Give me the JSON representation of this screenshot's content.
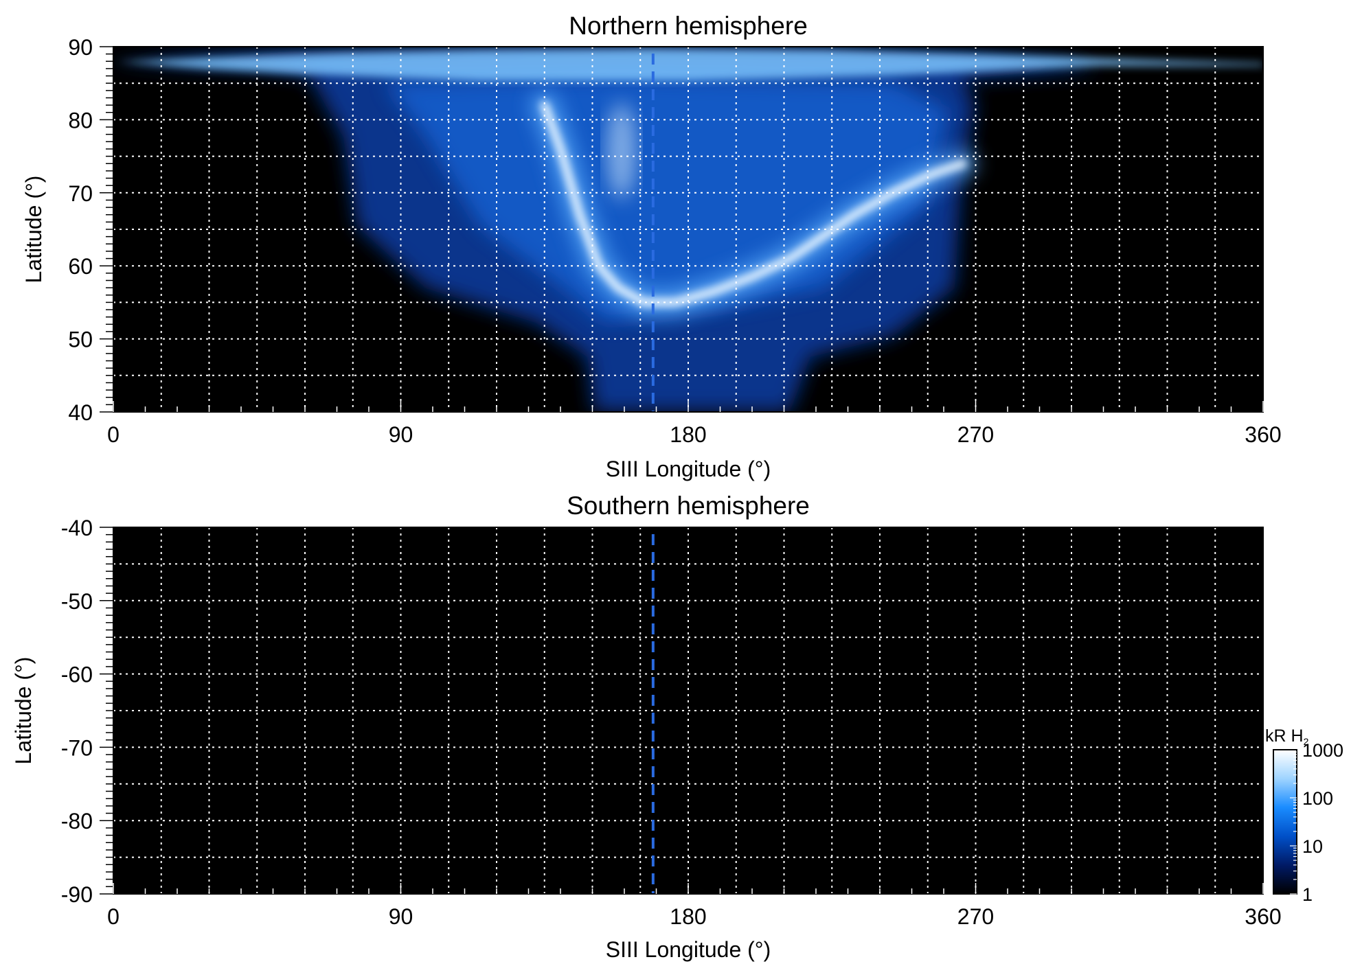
{
  "chart_data": [
    {
      "type": "heatmap",
      "title": "Northern hemisphere",
      "xlabel": "SIII Longitude (°)",
      "ylabel": "Latitude (°)",
      "xlim": [
        0,
        360
      ],
      "ylim": [
        40,
        90
      ],
      "x_ticks": [
        "0",
        "90",
        "180",
        "270",
        "360"
      ],
      "y_ticks": [
        "40",
        "50",
        "60",
        "70",
        "80",
        "90"
      ],
      "grid": true,
      "dashed_marker_longitude": 169,
      "main_oval": [
        {
          "lon": 135,
          "lat": 82
        },
        {
          "lon": 140,
          "lat": 76
        },
        {
          "lon": 146,
          "lat": 67
        },
        {
          "lon": 152,
          "lat": 60
        },
        {
          "lon": 158,
          "lat": 57
        },
        {
          "lon": 166,
          "lat": 55
        },
        {
          "lon": 176,
          "lat": 55
        },
        {
          "lon": 188,
          "lat": 56.5
        },
        {
          "lon": 200,
          "lat": 58.5
        },
        {
          "lon": 212,
          "lat": 61
        },
        {
          "lon": 222,
          "lat": 64
        },
        {
          "lon": 232,
          "lat": 67
        },
        {
          "lon": 244,
          "lat": 70
        },
        {
          "lon": 256,
          "lat": 72.5
        },
        {
          "lon": 266,
          "lat": 74
        }
      ],
      "coverage_region": "lon 40–300 at lat 85–90, narrowing to lon 150–210 at lat 40"
    },
    {
      "type": "heatmap",
      "title": "Southern hemisphere",
      "xlabel": "SIII Longitude (°)",
      "ylabel": "Latitude (°)",
      "xlim": [
        0,
        360
      ],
      "ylim": [
        -90,
        -40
      ],
      "x_ticks": [
        "0",
        "90",
        "180",
        "270",
        "360"
      ],
      "y_ticks": [
        "-40",
        "-50",
        "-60",
        "-70",
        "-80",
        "-90"
      ],
      "grid": true,
      "dashed_marker_longitude": 169
    }
  ],
  "colorbar": {
    "label": "kR H",
    "label_sub": "2",
    "scale": "log",
    "range": [
      1,
      1000
    ],
    "ticks": [
      "1000",
      "100",
      "10",
      "1"
    ],
    "colors": [
      "#000000",
      "#001a66",
      "#0050c8",
      "#1a8cff",
      "#9fd4ff",
      "#ffffff"
    ]
  },
  "colors": {
    "background": "#000000",
    "grid": "#ffffff",
    "marker": "#2a6be0",
    "emission_dim": "#0b3ea8",
    "emission_mid": "#1e78e6",
    "emission_bright": "#e8f4ff"
  }
}
